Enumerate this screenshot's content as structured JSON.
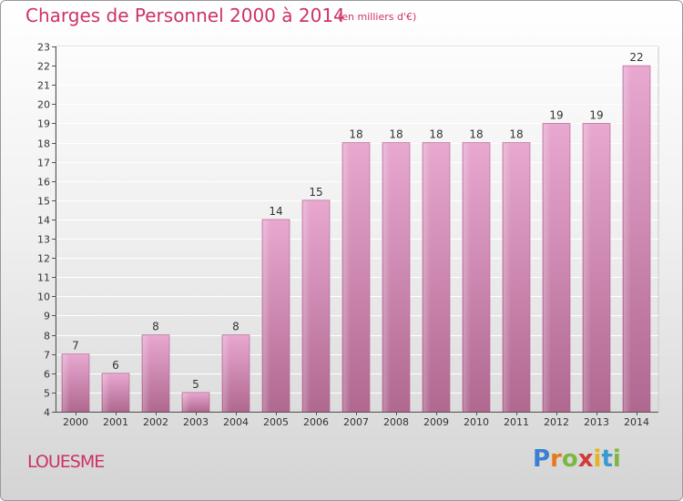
{
  "title": "Charges de Personnel 2000 à 2014",
  "subtitle": "(en milliers d'€)",
  "commune": "LOUESME",
  "logo": {
    "text": "Proxiti",
    "letters": [
      {
        "ch": "P",
        "color": "#3a7fd0"
      },
      {
        "ch": "r",
        "color": "#e8781e"
      },
      {
        "ch": "o",
        "color": "#7ab840"
      },
      {
        "ch": "x",
        "color": "#d23a3a"
      },
      {
        "ch": "i",
        "color": "#e8b21e"
      },
      {
        "ch": "t",
        "color": "#3a9ad0"
      },
      {
        "ch": "i",
        "color": "#7ab840"
      }
    ]
  },
  "colors": {
    "accent": "#cc3366",
    "bar_light": "#e8a8d0",
    "bar_dark": "#b06890"
  },
  "chart_data": {
    "type": "bar",
    "title": "Charges de Personnel 2000 à 2014",
    "categories": [
      "2000",
      "2001",
      "2002",
      "2003",
      "2004",
      "2005",
      "2006",
      "2007",
      "2008",
      "2009",
      "2010",
      "2011",
      "2012",
      "2013",
      "2014"
    ],
    "values": [
      7,
      6,
      8,
      5,
      8,
      14,
      15,
      18,
      18,
      18,
      18,
      18,
      19,
      19,
      22
    ],
    "ylim": [
      4,
      23
    ],
    "yticks": [
      4,
      5,
      6,
      7,
      8,
      9,
      10,
      11,
      12,
      13,
      14,
      15,
      16,
      17,
      18,
      19,
      20,
      21,
      22,
      23
    ],
    "grid": true,
    "xlabel": "",
    "ylabel": ""
  }
}
